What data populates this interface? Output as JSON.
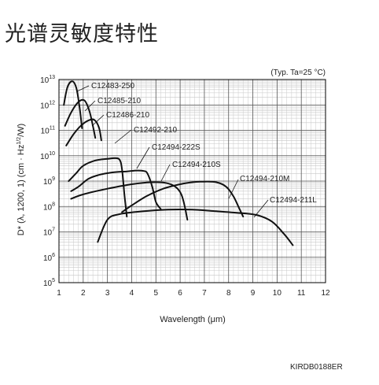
{
  "page_title": "光谱灵敏度特性",
  "code": "KIRDB0188ER",
  "chart_data": {
    "type": "line",
    "title": "",
    "condition": "(Typ. Ta=25 °C)",
    "xlabel": "Wavelength (μm)",
    "ylabel": "D* (λ, 1200, 1) (cm · Hz1/2/W)",
    "ylabel_parts": {
      "main": "D* (λ, 1200, 1) (cm · Hz",
      "sup": "1/2",
      "tail": "/W)"
    },
    "xlim": [
      1,
      12
    ],
    "ylim_exp": [
      5,
      13
    ],
    "y_scale": "log",
    "x_ticks": [
      1,
      2,
      3,
      4,
      5,
      6,
      7,
      8,
      9,
      10,
      11,
      12
    ],
    "y_ticks": [
      {
        "base": "10",
        "exp": "5"
      },
      {
        "base": "10",
        "exp": "6"
      },
      {
        "base": "10",
        "exp": "7"
      },
      {
        "base": "10",
        "exp": "8"
      },
      {
        "base": "10",
        "exp": "9"
      },
      {
        "base": "10",
        "exp": "10"
      },
      {
        "base": "10",
        "exp": "11"
      },
      {
        "base": "10",
        "exp": "12"
      },
      {
        "base": "10",
        "exp": "13"
      }
    ],
    "grid": true,
    "series": [
      {
        "name": "C12483-250",
        "points": [
          [
            1.2,
            1000000000000.0
          ],
          [
            1.35,
            5000000000000.0
          ],
          [
            1.55,
            8500000000000.0
          ],
          [
            1.72,
            4500000000000.0
          ],
          [
            1.85,
            800000000000.0
          ],
          [
            1.95,
            120000000000.0
          ]
        ]
      },
      {
        "name": "C12485-210",
        "points": [
          [
            1.25,
            150000000000.0
          ],
          [
            1.5,
            500000000000.0
          ],
          [
            1.8,
            1300000000000.0
          ],
          [
            2.05,
            1500000000000.0
          ],
          [
            2.25,
            600000000000.0
          ],
          [
            2.4,
            150000000000.0
          ],
          [
            2.5,
            50000000000.0
          ]
        ]
      },
      {
        "name": "C12486-210",
        "points": [
          [
            1.3,
            25000000000.0
          ],
          [
            1.6,
            70000000000.0
          ],
          [
            1.9,
            150000000000.0
          ],
          [
            2.2,
            240000000000.0
          ],
          [
            2.45,
            260000000000.0
          ],
          [
            2.65,
            130000000000.0
          ],
          [
            2.75,
            40000000000.0
          ]
        ]
      },
      {
        "name": "C12492-210",
        "points": [
          [
            1.4,
            1000000000.0
          ],
          [
            1.7,
            2000000000.0
          ],
          [
            2.0,
            4000000000.0
          ],
          [
            2.5,
            6500000000.0
          ],
          [
            3.0,
            7500000000.0
          ],
          [
            3.3,
            8000000000.0
          ],
          [
            3.5,
            7000000000.0
          ],
          [
            3.6,
            3000000000.0
          ],
          [
            3.7,
            300000000.0
          ],
          [
            3.8,
            40000000.0
          ]
        ]
      },
      {
        "name": "C12494-222S",
        "points": [
          [
            1.5,
            400000000.0
          ],
          [
            1.8,
            600000000.0
          ],
          [
            2.2,
            1200000000.0
          ],
          [
            2.6,
            1700000000.0
          ],
          [
            3.2,
            2200000000.0
          ],
          [
            3.8,
            2400000000.0
          ],
          [
            4.2,
            2600000000.0
          ],
          [
            4.5,
            2500000000.0
          ],
          [
            4.65,
            2000000000.0
          ],
          [
            4.85,
            600000000.0
          ],
          [
            5.0,
            150000000.0
          ],
          [
            5.2,
            80000000.0
          ]
        ]
      },
      {
        "name": "C12494-210S",
        "points": [
          [
            1.5,
            200000000.0
          ],
          [
            2.0,
            300000000.0
          ],
          [
            3.0,
            500000000.0
          ],
          [
            4.0,
            750000000.0
          ],
          [
            4.8,
            900000000.0
          ],
          [
            5.4,
            850000000.0
          ],
          [
            5.8,
            600000000.0
          ],
          [
            6.05,
            300000000.0
          ],
          [
            6.2,
            90000000.0
          ],
          [
            6.3,
            30000000.0
          ]
        ]
      },
      {
        "name": "C12494-210M",
        "points": [
          [
            3.6,
            60000000.0
          ],
          [
            4.0,
            110000000.0
          ],
          [
            4.6,
            250000000.0
          ],
          [
            5.3,
            500000000.0
          ],
          [
            6.0,
            750000000.0
          ],
          [
            6.5,
            900000000.0
          ],
          [
            7.0,
            950000000.0
          ],
          [
            7.5,
            900000000.0
          ],
          [
            7.9,
            600000000.0
          ],
          [
            8.2,
            250000000.0
          ],
          [
            8.45,
            80000000.0
          ],
          [
            8.6,
            40000000.0
          ]
        ]
      },
      {
        "name": "C12494-211L",
        "points": [
          [
            2.6,
            4000000.0
          ],
          [
            3.0,
            30000000.0
          ],
          [
            3.5,
            50000000.0
          ],
          [
            4.5,
            65000000.0
          ],
          [
            5.5,
            75000000.0
          ],
          [
            6.5,
            75000000.0
          ],
          [
            7.5,
            65000000.0
          ],
          [
            8.5,
            55000000.0
          ],
          [
            9.2,
            45000000.0
          ],
          [
            9.8,
            25000000.0
          ],
          [
            10.3,
            8000000.0
          ],
          [
            10.65,
            3000000.0
          ]
        ]
      }
    ]
  }
}
